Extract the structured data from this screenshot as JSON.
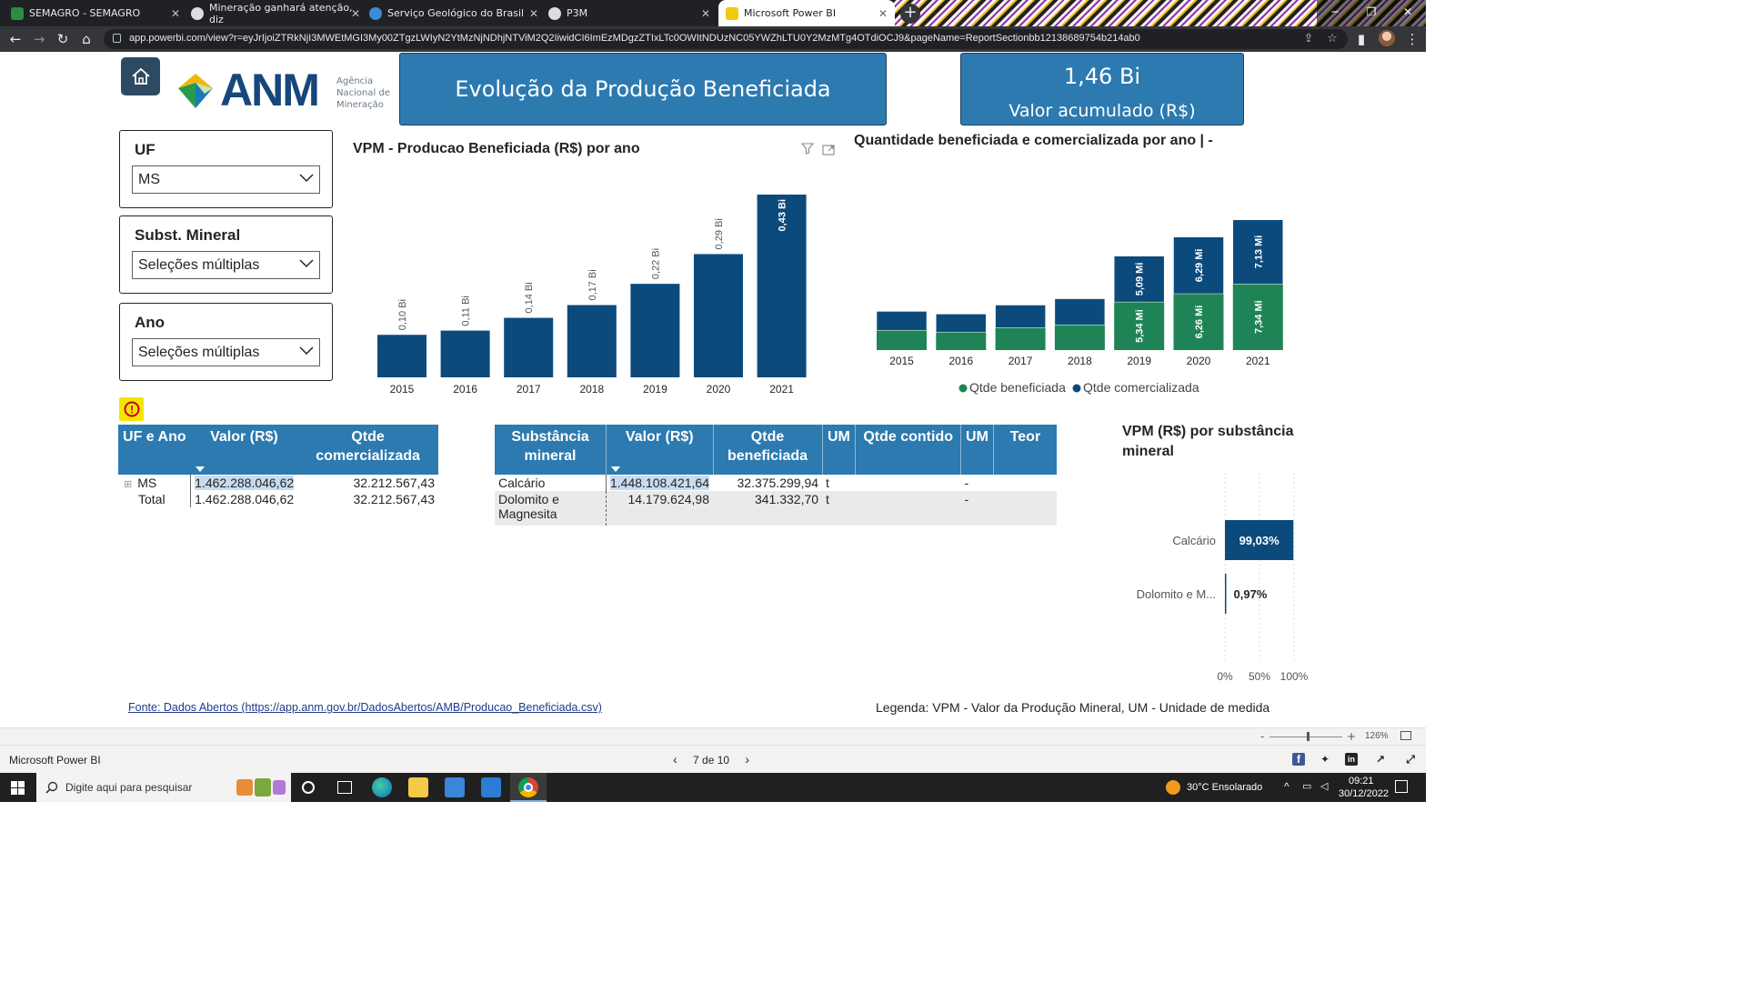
{
  "browser": {
    "tabs": [
      {
        "title": "SEMAGRO - SEMAGRO",
        "favicon_color": "#2a8d3f"
      },
      {
        "title": "Mineração ganhará atenção, diz",
        "favicon_color": "#dddddd"
      },
      {
        "title": "Serviço Geológico do Brasil",
        "favicon_color": "#3a8ed6"
      },
      {
        "title": "P3M",
        "favicon_color": "#dddddd"
      },
      {
        "title": "Microsoft Power BI",
        "favicon_color": "#f2c811"
      }
    ],
    "url": "app.powerbi.com/view?r=eyJrIjoiZTRkNjI3MWEtMGI3My00ZTgzLWIyN2YtMzNjNDhjNTViM2Q2IiwidCI6ImEzMDgzZTIxLTc0OWItNDUzNC05YWZhLTU0Y2MzMTg4OTdiOCJ9&pageName=ReportSectionbb12138689754b214ab0"
  },
  "report": {
    "logo": {
      "text": "ANM",
      "subtitle_line1": "Agência",
      "subtitle_line2": "Nacional de",
      "subtitle_line3": "Mineração"
    },
    "title": "Evolução da Produção Beneficiada",
    "kpi": {
      "value": "1,46 Bi",
      "label": "Valor acumulado (R$)"
    },
    "slicers": [
      {
        "title": "UF",
        "value": "MS"
      },
      {
        "title": "Subst. Mineral",
        "value": "Seleções múltiplas"
      },
      {
        "title": "Ano",
        "value": "Seleções múltiplas"
      }
    ],
    "warning_icon": "!",
    "table_uf": {
      "headers": [
        "UF e Ano",
        "Valor (R$)",
        "Qtde comercializada"
      ],
      "rows": [
        {
          "label": "MS",
          "valor": "1.462.288.046,62",
          "qtde": "32.212.567,43"
        },
        {
          "label": "Total",
          "valor": "1.462.288.046,62",
          "qtde": "32.212.567,43"
        }
      ]
    },
    "table_subst": {
      "headers": [
        "Substância mineral",
        "Valor (R$)",
        "Qtde beneficiada",
        "UM",
        "Qtde contido",
        "UM",
        "Teor"
      ],
      "rows": [
        {
          "subst": "Calcário",
          "valor": "1.448.108.421,64",
          "qtde": "32.375.299,94",
          "um": "t",
          "contido": "",
          "um2": "-",
          "teor": ""
        },
        {
          "subst": "Dolomito e Magnesita",
          "valor": "14.179.624,98",
          "qtde": "341.332,70",
          "um": "t",
          "contido": "",
          "um2": "-",
          "teor": ""
        }
      ]
    },
    "footer_source": "Fonte: Dados Abertos (https://app.anm.gov.br/DadosAbertos/AMB/Producao_Beneficiada.csv)",
    "footer_legend": "Legenda: VPM - Valor da Produção Mineral, UM - Unidade de medida"
  },
  "chart_data": [
    {
      "type": "bar",
      "title": "VPM - Producao Beneficiada (R$) por ano",
      "categories": [
        "2015",
        "2016",
        "2017",
        "2018",
        "2019",
        "2020",
        "2021"
      ],
      "values": [
        0.1,
        0.11,
        0.14,
        0.17,
        0.22,
        0.29,
        0.43
      ],
      "data_labels": [
        "0,10 Bi",
        "0,11 Bi",
        "0,14 Bi",
        "0,17 Bi",
        "0,22 Bi",
        "0,29 Bi",
        "0,43 Bi"
      ],
      "color": "#0c4a7c"
    },
    {
      "type": "bar",
      "stacked": true,
      "title": "Quantidade beneficiada e comercializada por ano | -",
      "categories": [
        "2015",
        "2016",
        "2017",
        "2018",
        "2019",
        "2020",
        "2021"
      ],
      "series": [
        {
          "name": "Qtde beneficiada",
          "color": "#1f8455",
          "values": [
            2.2,
            2.0,
            2.5,
            2.8,
            5.34,
            6.26,
            7.34
          ],
          "labels": [
            "",
            "",
            "",
            "",
            "5,34 Mi",
            "6,26 Mi",
            "7,34 Mi"
          ]
        },
        {
          "name": "Qtde comercializada",
          "color": "#0c4a7c",
          "values": [
            2.1,
            2.0,
            2.5,
            2.9,
            5.09,
            6.29,
            7.13
          ],
          "labels": [
            "",
            "",
            "",
            "",
            "5,09 Mi",
            "6,29 Mi",
            "7,13 Mi"
          ]
        }
      ],
      "legend": "bottom"
    },
    {
      "type": "bar",
      "orientation": "horizontal",
      "title": "VPM (R$) por substância mineral",
      "categories": [
        "Calcário",
        "Dolomito e M..."
      ],
      "values": [
        99.03,
        0.97
      ],
      "data_labels": [
        "99,03%",
        "0,97%"
      ],
      "x_ticks": [
        "0%",
        "50%",
        "100%"
      ],
      "xlim": [
        0,
        100
      ],
      "color": "#0c4a7c"
    }
  ],
  "powerbi": {
    "app_name": "Microsoft Power BI",
    "page_indicator": "7 de 10",
    "zoom": "126%"
  },
  "taskbar": {
    "search_placeholder": "Digite aqui para pesquisar",
    "weather": "30°C  Ensolarado",
    "time": "09:21",
    "date": "30/12/2022"
  }
}
